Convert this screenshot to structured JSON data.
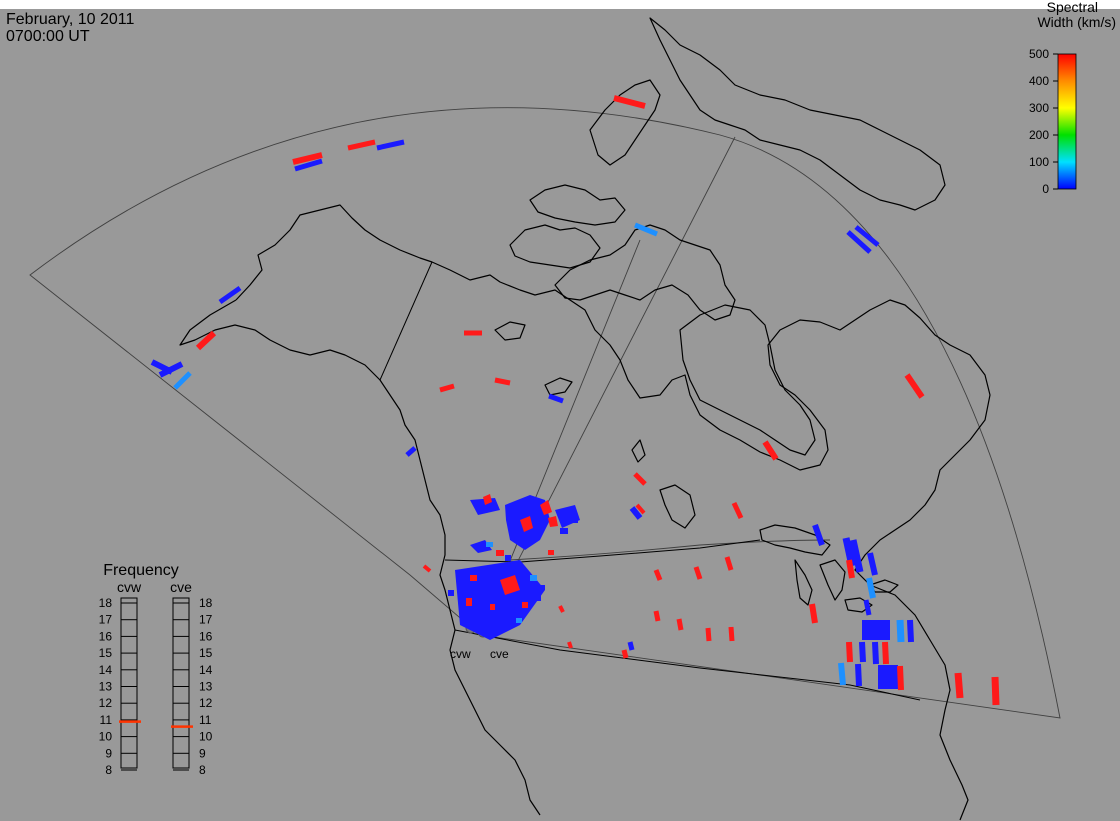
{
  "header": {
    "date": "February, 10 2011",
    "time": "0700:00 UT"
  },
  "colorbar": {
    "title_line1": "Spectral",
    "title_line2": "Width (km/s)",
    "ticks": [
      "500",
      "400",
      "300",
      "200",
      "100",
      "0"
    ],
    "values": [
      500,
      400,
      300,
      200,
      100,
      0
    ],
    "colors": [
      "#ff0000",
      "#ff8c00",
      "#ffff00",
      "#00e000",
      "#00e0ff",
      "#0000ff"
    ]
  },
  "frequency": {
    "title": "Frequency",
    "left_label": "cvw",
    "right_label": "cve",
    "ticks": [
      "18",
      "17",
      "16",
      "15",
      "14",
      "13",
      "12",
      "11",
      "10",
      "9",
      "8"
    ],
    "values": [
      18,
      17,
      16,
      15,
      14,
      13,
      12,
      11,
      10,
      9,
      8
    ],
    "cvw_mhz": 10.9,
    "cve_mhz": 10.6,
    "marker_color": "#ff3300"
  },
  "radars": {
    "west_label": "cvw",
    "east_label": "cve"
  },
  "colors": {
    "background": "#999999",
    "land_line": "#000000",
    "fov_line": "#404040",
    "high_width": "#ff1a1a",
    "low_width": "#1a1aff",
    "mid_width": "#1e90ff"
  }
}
